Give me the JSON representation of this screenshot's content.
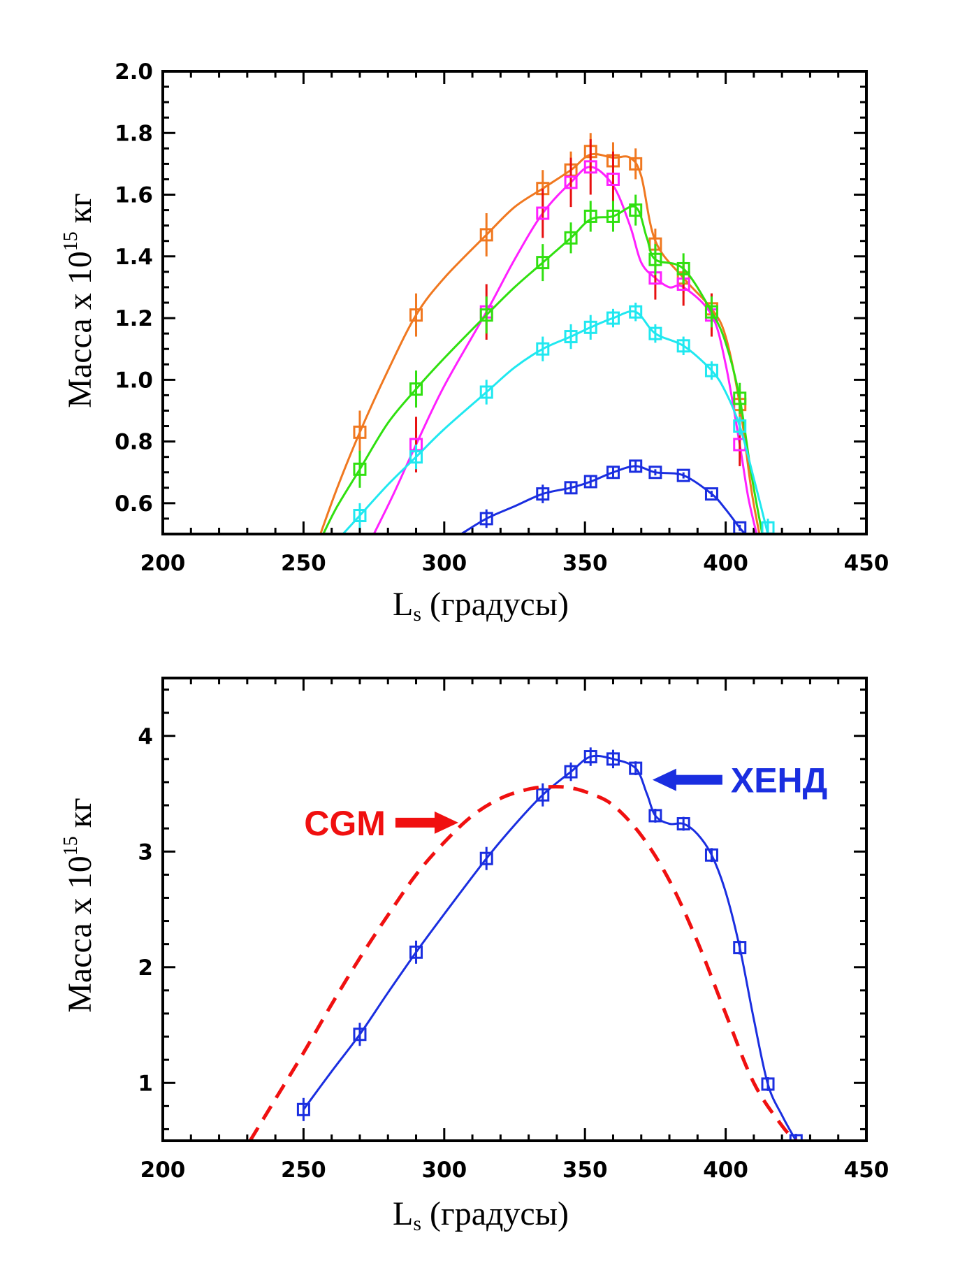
{
  "chart_data": [
    {
      "type": "line",
      "xlabel_main": "L",
      "xlabel_sub": "s",
      "xlabel_rest": " (градусы)",
      "ylabel_main": "Масса x 10",
      "ylabel_sup": "15",
      "ylabel_rest": " кг",
      "xlim": [
        200,
        450
      ],
      "ylim": [
        0.5,
        2.0
      ],
      "xticks": [
        200,
        250,
        300,
        350,
        400,
        450
      ],
      "xtick_labels": [
        "200",
        "250",
        "300",
        "350",
        "400",
        "450"
      ],
      "yticks": [
        0.6,
        0.8,
        1.0,
        1.2,
        1.4,
        1.6,
        1.8,
        2.0
      ],
      "ytick_labels": [
        "0.6",
        "0.8",
        "1.0",
        "1.2",
        "1.4",
        "1.6",
        "1.8",
        "2.0"
      ],
      "series": [
        {
          "color": "#f07820",
          "err_color": "#f07820",
          "x": [
            270,
            290,
            315,
            335,
            345,
            352,
            360,
            368,
            375,
            385,
            395,
            405
          ],
          "y": [
            0.83,
            1.21,
            1.47,
            1.62,
            1.68,
            1.74,
            1.71,
            1.7,
            1.44,
            1.33,
            1.23,
            0.92
          ],
          "err": [
            0.07,
            0.07,
            0.07,
            0.06,
            0.06,
            0.06,
            0.06,
            0.05,
            0.05,
            0.05,
            0.05,
            0.05
          ],
          "curve_x": [
            256,
            262,
            270,
            280,
            290,
            300,
            315,
            325,
            335,
            345,
            352,
            360,
            366,
            370,
            375,
            385,
            395,
            400,
            405,
            409,
            412
          ],
          "curve_y": [
            0.5,
            0.65,
            0.83,
            1.03,
            1.21,
            1.33,
            1.47,
            1.56,
            1.62,
            1.68,
            1.73,
            1.72,
            1.72,
            1.66,
            1.45,
            1.33,
            1.23,
            1.14,
            0.92,
            0.65,
            0.5
          ]
        },
        {
          "color": "#ff20ff",
          "err_color": "#e81010",
          "x": [
            290,
            315,
            335,
            345,
            352,
            360,
            375,
            385,
            395,
            405
          ],
          "y": [
            0.79,
            1.22,
            1.54,
            1.64,
            1.69,
            1.65,
            1.33,
            1.31,
            1.21,
            0.79
          ],
          "err": [
            0.09,
            0.09,
            0.08,
            0.08,
            0.09,
            0.09,
            0.07,
            0.07,
            0.07,
            0.07
          ],
          "curve_x": [
            275,
            282,
            290,
            300,
            315,
            325,
            335,
            345,
            352,
            360,
            366,
            370,
            375,
            380,
            385,
            395,
            400,
            405,
            408,
            411
          ],
          "curve_y": [
            0.5,
            0.63,
            0.79,
            0.98,
            1.22,
            1.39,
            1.54,
            1.64,
            1.69,
            1.63,
            1.5,
            1.38,
            1.33,
            1.3,
            1.3,
            1.21,
            1.05,
            0.79,
            0.62,
            0.5
          ]
        },
        {
          "color": "#30e010",
          "err_color": "#30e010",
          "x": [
            270,
            290,
            315,
            335,
            345,
            352,
            360,
            368,
            375,
            385,
            395,
            405
          ],
          "y": [
            0.71,
            0.97,
            1.21,
            1.38,
            1.46,
            1.53,
            1.53,
            1.55,
            1.39,
            1.36,
            1.22,
            0.94
          ],
          "err": [
            0.06,
            0.06,
            0.06,
            0.06,
            0.05,
            0.05,
            0.05,
            0.05,
            0.05,
            0.05,
            0.05,
            0.05
          ],
          "curve_x": [
            257,
            262,
            270,
            280,
            290,
            300,
            315,
            325,
            335,
            345,
            352,
            360,
            368,
            372,
            375,
            385,
            395,
            400,
            405,
            409,
            413
          ],
          "curve_y": [
            0.5,
            0.59,
            0.71,
            0.86,
            0.97,
            1.07,
            1.21,
            1.3,
            1.38,
            1.46,
            1.52,
            1.53,
            1.56,
            1.46,
            1.39,
            1.36,
            1.22,
            1.12,
            0.94,
            0.7,
            0.5
          ]
        },
        {
          "color": "#20e8f0",
          "err_color": "#20e8f0",
          "x": [
            270,
            290,
            315,
            335,
            345,
            352,
            360,
            368,
            375,
            385,
            395,
            405,
            415
          ],
          "y": [
            0.56,
            0.75,
            0.96,
            1.1,
            1.14,
            1.17,
            1.2,
            1.22,
            1.15,
            1.11,
            1.03,
            0.85,
            0.52
          ],
          "err": [
            0.04,
            0.04,
            0.04,
            0.04,
            0.04,
            0.04,
            0.03,
            0.03,
            0.03,
            0.03,
            0.03,
            0.03,
            0.03
          ],
          "curve_x": [
            264,
            270,
            280,
            290,
            300,
            315,
            325,
            335,
            345,
            352,
            360,
            368,
            375,
            385,
            395,
            400,
            405,
            410,
            415
          ],
          "curve_y": [
            0.5,
            0.56,
            0.66,
            0.75,
            0.84,
            0.96,
            1.04,
            1.1,
            1.14,
            1.17,
            1.2,
            1.22,
            1.15,
            1.11,
            1.03,
            0.96,
            0.85,
            0.68,
            0.5
          ]
        },
        {
          "color": "#1a2ee0",
          "err_color": "#1a2ee0",
          "x": [
            315,
            335,
            345,
            352,
            360,
            368,
            375,
            385,
            395,
            405
          ],
          "y": [
            0.55,
            0.63,
            0.65,
            0.67,
            0.7,
            0.72,
            0.7,
            0.69,
            0.63,
            0.52
          ],
          "err": [
            0.03,
            0.03,
            0.02,
            0.02,
            0.02,
            0.02,
            0.01,
            0.01,
            0.01,
            0.01
          ],
          "curve_x": [
            306,
            315,
            325,
            335,
            345,
            352,
            360,
            368,
            375,
            385,
            395,
            400,
            405,
            407
          ],
          "curve_y": [
            0.5,
            0.55,
            0.59,
            0.63,
            0.65,
            0.67,
            0.7,
            0.72,
            0.7,
            0.69,
            0.63,
            0.58,
            0.52,
            0.5
          ]
        }
      ]
    },
    {
      "type": "line",
      "xlabel_main": "L",
      "xlabel_sub": "s",
      "xlabel_rest": " (градусы)",
      "ylabel_main": "Масса x 10",
      "ylabel_sup": "15",
      "ylabel_rest": " кг",
      "xlim": [
        200,
        450
      ],
      "ylim": [
        0.5,
        4.5
      ],
      "xticks": [
        200,
        250,
        300,
        350,
        400,
        450
      ],
      "xtick_labels": [
        "200",
        "250",
        "300",
        "350",
        "400",
        "450"
      ],
      "yticks": [
        1,
        2,
        3,
        4
      ],
      "ytick_labels": [
        "1",
        "2",
        "3",
        "4"
      ],
      "series": [
        {
          "name": "ХЕНД",
          "color": "#1a2ee0",
          "err_color": "#1a2ee0",
          "x": [
            250,
            270,
            290,
            315,
            335,
            345,
            352,
            360,
            368,
            375,
            385,
            395,
            405,
            415,
            425
          ],
          "y": [
            0.77,
            1.42,
            2.13,
            2.94,
            3.49,
            3.69,
            3.82,
            3.8,
            3.72,
            3.31,
            3.24,
            2.97,
            2.17,
            0.99,
            0.5
          ],
          "err": [
            0.1,
            0.1,
            0.1,
            0.1,
            0.1,
            0.08,
            0.08,
            0.08,
            0.06,
            0.06,
            0.06,
            0.06,
            0.06,
            0.06,
            0.06
          ],
          "curve_x": [
            250,
            260,
            270,
            280,
            290,
            300,
            315,
            325,
            335,
            345,
            352,
            360,
            368,
            372,
            375,
            380,
            385,
            390,
            395,
            400,
            405,
            410,
            415,
            420,
            425
          ],
          "curve_y": [
            0.77,
            1.1,
            1.42,
            1.78,
            2.13,
            2.46,
            2.94,
            3.23,
            3.49,
            3.69,
            3.82,
            3.8,
            3.72,
            3.5,
            3.31,
            3.24,
            3.24,
            3.15,
            2.97,
            2.65,
            2.17,
            1.55,
            0.99,
            0.72,
            0.5
          ]
        },
        {
          "name": "CGM",
          "color": "#f01010",
          "dashed": true,
          "x": [
            231,
            240,
            250,
            260,
            270,
            280,
            290,
            300,
            310,
            320,
            330,
            338,
            345,
            352,
            360,
            370,
            380,
            390,
            400,
            410,
            420,
            425
          ],
          "y": [
            0.5,
            0.86,
            1.26,
            1.68,
            2.08,
            2.45,
            2.8,
            3.08,
            3.31,
            3.46,
            3.54,
            3.56,
            3.55,
            3.5,
            3.4,
            3.14,
            2.75,
            2.22,
            1.6,
            1.0,
            0.63,
            0.5
          ]
        }
      ],
      "annotations": [
        {
          "text": "CGM",
          "color": "#f01010",
          "x": 305,
          "y": 3.25,
          "arrow_dir": "right"
        },
        {
          "text": "ХЕНД",
          "color": "#1a2ee0",
          "x": 374,
          "y": 3.62,
          "arrow_dir": "left"
        }
      ]
    }
  ]
}
